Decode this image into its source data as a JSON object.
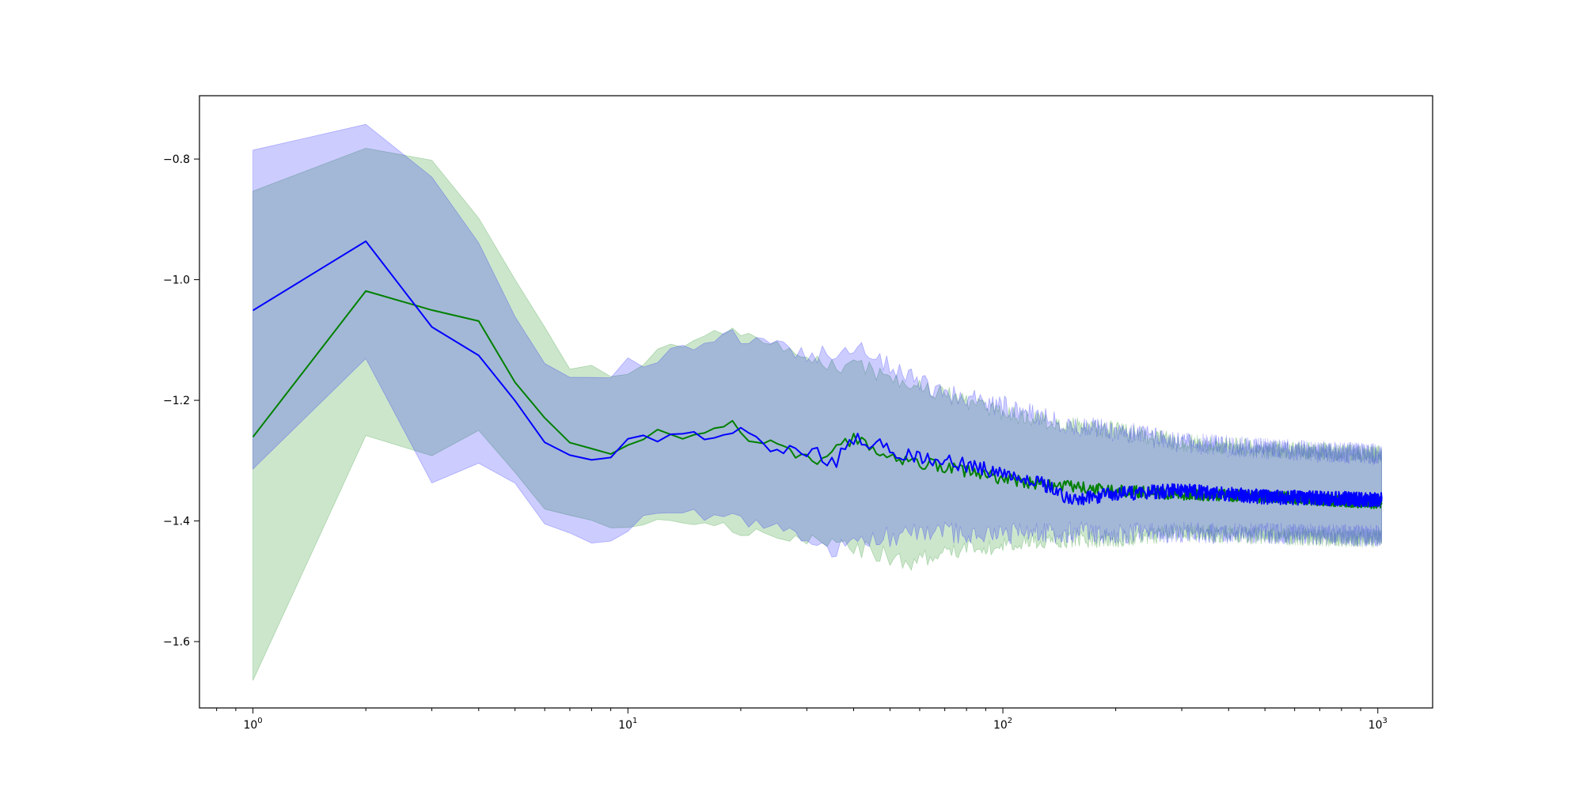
{
  "chart_data": {
    "type": "line",
    "title": "",
    "xlabel": "",
    "ylabel": "",
    "xscale": "log",
    "xlim": [
      0.72,
      1400
    ],
    "ylim": [
      -1.71,
      -0.695
    ],
    "x_ticks": [
      {
        "value": 1,
        "base": "10",
        "exp": "0"
      },
      {
        "value": 10,
        "base": "10",
        "exp": "1"
      },
      {
        "value": 100,
        "base": "10",
        "exp": "2"
      },
      {
        "value": 1000,
        "base": "10",
        "exp": "3"
      }
    ],
    "y_ticks": [
      {
        "value": -0.8,
        "label": "−0.8"
      },
      {
        "value": -1.0,
        "label": "−1.0"
      },
      {
        "value": -1.2,
        "label": "−1.2"
      },
      {
        "value": -1.4,
        "label": "−1.4"
      },
      {
        "value": -1.6,
        "label": "−1.6"
      }
    ],
    "grid": false,
    "legend": "none",
    "x_max": 1024,
    "series": [
      {
        "color": "#008000",
        "band_color": "#008000",
        "band_opacity": 0.2,
        "mean": [
          [
            1,
            -1.26
          ],
          [
            2,
            -1.02
          ],
          [
            3,
            -1.05
          ],
          [
            4,
            -1.07
          ],
          [
            5,
            -1.17
          ],
          [
            6,
            -1.23
          ],
          [
            7,
            -1.27
          ],
          [
            8,
            -1.28
          ],
          [
            9,
            -1.29
          ],
          [
            10,
            -1.28
          ],
          [
            12,
            -1.25
          ],
          [
            14,
            -1.265
          ],
          [
            16,
            -1.25
          ],
          [
            18,
            -1.24
          ],
          [
            19,
            -1.235
          ],
          [
            21,
            -1.27
          ],
          [
            24,
            -1.27
          ],
          [
            28,
            -1.29
          ],
          [
            32,
            -1.3
          ],
          [
            38,
            -1.27
          ],
          [
            40,
            -1.265
          ],
          [
            45,
            -1.28
          ],
          [
            55,
            -1.3
          ],
          [
            70,
            -1.31
          ],
          [
            100,
            -1.33
          ],
          [
            130,
            -1.34
          ],
          [
            160,
            -1.345
          ],
          [
            200,
            -1.35
          ],
          [
            300,
            -1.355
          ],
          [
            500,
            -1.36
          ],
          [
            1024,
            -1.37
          ]
        ],
        "upper": [
          [
            1,
            -0.855
          ],
          [
            2,
            -0.78
          ],
          [
            3,
            -0.8
          ],
          [
            4,
            -0.9
          ],
          [
            5,
            -1.0
          ],
          [
            6,
            -1.08
          ],
          [
            7,
            -1.15
          ],
          [
            8,
            -1.14
          ],
          [
            9,
            -1.16
          ],
          [
            10,
            -1.15
          ],
          [
            12,
            -1.12
          ],
          [
            16,
            -1.1
          ],
          [
            19,
            -1.08
          ],
          [
            22,
            -1.1
          ],
          [
            28,
            -1.12
          ],
          [
            35,
            -1.14
          ],
          [
            45,
            -1.15
          ],
          [
            60,
            -1.18
          ],
          [
            80,
            -1.2
          ],
          [
            100,
            -1.22
          ],
          [
            150,
            -1.24
          ],
          [
            200,
            -1.25
          ],
          [
            300,
            -1.27
          ],
          [
            500,
            -1.28
          ],
          [
            1024,
            -1.29
          ]
        ],
        "lower": [
          [
            1,
            -1.665
          ],
          [
            2,
            -1.26
          ],
          [
            3,
            -1.29
          ],
          [
            4,
            -1.25
          ],
          [
            5,
            -1.32
          ],
          [
            6,
            -1.38
          ],
          [
            7,
            -1.39
          ],
          [
            8,
            -1.4
          ],
          [
            9,
            -1.41
          ],
          [
            10,
            -1.41
          ],
          [
            12,
            -1.39
          ],
          [
            14,
            -1.4
          ],
          [
            18,
            -1.41
          ],
          [
            22,
            -1.42
          ],
          [
            28,
            -1.43
          ],
          [
            35,
            -1.44
          ],
          [
            45,
            -1.45
          ],
          [
            55,
            -1.47
          ],
          [
            70,
            -1.45
          ],
          [
            100,
            -1.44
          ],
          [
            150,
            -1.43
          ],
          [
            200,
            -1.43
          ],
          [
            300,
            -1.42
          ],
          [
            500,
            -1.425
          ],
          [
            1024,
            -1.43
          ]
        ],
        "noise": 0.01,
        "band_noise": 0.015,
        "seed": 7
      },
      {
        "color": "#0000ff",
        "band_color": "#0000ff",
        "band_opacity": 0.2,
        "mean": [
          [
            1,
            -1.05
          ],
          [
            2,
            -0.935
          ],
          [
            3,
            -1.08
          ],
          [
            4,
            -1.125
          ],
          [
            5,
            -1.2
          ],
          [
            6,
            -1.27
          ],
          [
            7,
            -1.29
          ],
          [
            8,
            -1.3
          ],
          [
            9,
            -1.295
          ],
          [
            10,
            -1.265
          ],
          [
            12,
            -1.265
          ],
          [
            14,
            -1.255
          ],
          [
            16,
            -1.26
          ],
          [
            18,
            -1.255
          ],
          [
            20,
            -1.25
          ],
          [
            22,
            -1.26
          ],
          [
            24,
            -1.29
          ],
          [
            28,
            -1.28
          ],
          [
            32,
            -1.29
          ],
          [
            36,
            -1.31
          ],
          [
            38,
            -1.27
          ],
          [
            42,
            -1.265
          ],
          [
            45,
            -1.27
          ],
          [
            55,
            -1.29
          ],
          [
            70,
            -1.3
          ],
          [
            100,
            -1.32
          ],
          [
            130,
            -1.34
          ],
          [
            150,
            -1.365
          ],
          [
            200,
            -1.355
          ],
          [
            300,
            -1.35
          ],
          [
            500,
            -1.36
          ],
          [
            1024,
            -1.365
          ]
        ],
        "upper": [
          [
            1,
            -0.785
          ],
          [
            2,
            -0.74
          ],
          [
            3,
            -0.83
          ],
          [
            4,
            -0.94
          ],
          [
            5,
            -1.06
          ],
          [
            6,
            -1.14
          ],
          [
            7,
            -1.16
          ],
          [
            8,
            -1.16
          ],
          [
            9,
            -1.16
          ],
          [
            10,
            -1.14
          ],
          [
            12,
            -1.13
          ],
          [
            16,
            -1.1
          ],
          [
            18,
            -1.09
          ],
          [
            22,
            -1.1
          ],
          [
            28,
            -1.12
          ],
          [
            35,
            -1.12
          ],
          [
            40,
            -1.11
          ],
          [
            45,
            -1.13
          ],
          [
            55,
            -1.16
          ],
          [
            70,
            -1.19
          ],
          [
            100,
            -1.21
          ],
          [
            150,
            -1.24
          ],
          [
            200,
            -1.25
          ],
          [
            300,
            -1.27
          ],
          [
            500,
            -1.28
          ],
          [
            1024,
            -1.29
          ]
        ],
        "lower": [
          [
            1,
            -1.315
          ],
          [
            2,
            -1.13
          ],
          [
            3,
            -1.335
          ],
          [
            4,
            -1.305
          ],
          [
            5,
            -1.34
          ],
          [
            6,
            -1.405
          ],
          [
            7,
            -1.42
          ],
          [
            8,
            -1.435
          ],
          [
            9,
            -1.435
          ],
          [
            10,
            -1.41
          ],
          [
            12,
            -1.39
          ],
          [
            16,
            -1.39
          ],
          [
            20,
            -1.4
          ],
          [
            24,
            -1.41
          ],
          [
            28,
            -1.42
          ],
          [
            33,
            -1.44
          ],
          [
            38,
            -1.45
          ],
          [
            45,
            -1.43
          ],
          [
            60,
            -1.42
          ],
          [
            80,
            -1.42
          ],
          [
            100,
            -1.42
          ],
          [
            150,
            -1.42
          ],
          [
            200,
            -1.42
          ],
          [
            300,
            -1.42
          ],
          [
            500,
            -1.42
          ],
          [
            1024,
            -1.425
          ]
        ],
        "noise": 0.012,
        "band_noise": 0.018,
        "seed": 13
      }
    ]
  }
}
